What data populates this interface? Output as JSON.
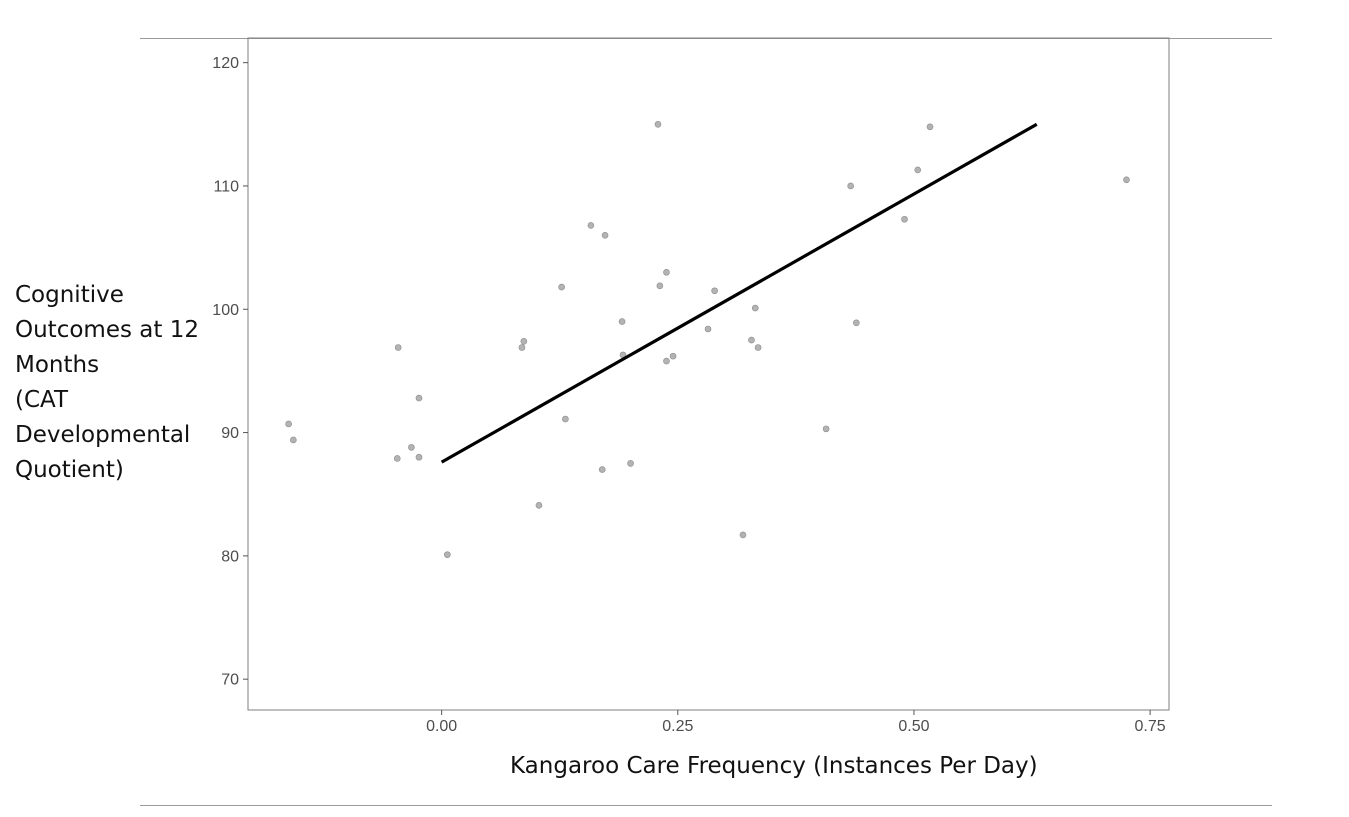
{
  "chart_data": {
    "type": "scatter",
    "title": "",
    "xlabel": "Kangaroo Care Frequency (Instances Per Day)",
    "ylabel_lines": [
      "Cognitive",
      "Outcomes at 12",
      "Months",
      "(CAT",
      "Developmental",
      "Quotient)"
    ],
    "xlim": [
      -0.205,
      0.77
    ],
    "ylim": [
      67.5,
      122
    ],
    "x_ticks": [
      0.0,
      0.25,
      0.5,
      0.75
    ],
    "x_tick_labels": [
      "0.00",
      "0.25",
      "0.50",
      "0.75"
    ],
    "y_ticks": [
      70,
      80,
      90,
      100,
      110,
      120
    ],
    "y_tick_labels": [
      "70",
      "80",
      "90",
      "100",
      "110",
      "120"
    ],
    "grid": false,
    "point_color": "#999999",
    "line_color": "#000000",
    "points": [
      {
        "x": -0.162,
        "y": 90.7
      },
      {
        "x": -0.157,
        "y": 89.4
      },
      {
        "x": -0.046,
        "y": 96.9
      },
      {
        "x": -0.047,
        "y": 87.9
      },
      {
        "x": -0.032,
        "y": 88.8
      },
      {
        "x": -0.024,
        "y": 92.8
      },
      {
        "x": -0.024,
        "y": 88.0
      },
      {
        "x": 0.006,
        "y": 80.1
      },
      {
        "x": 0.085,
        "y": 96.9
      },
      {
        "x": 0.087,
        "y": 97.4
      },
      {
        "x": 0.103,
        "y": 84.1
      },
      {
        "x": 0.127,
        "y": 101.8
      },
      {
        "x": 0.131,
        "y": 91.1
      },
      {
        "x": 0.158,
        "y": 106.8
      },
      {
        "x": 0.17,
        "y": 87.0
      },
      {
        "x": 0.173,
        "y": 106.0
      },
      {
        "x": 0.191,
        "y": 99.0
      },
      {
        "x": 0.192,
        "y": 96.3
      },
      {
        "x": 0.2,
        "y": 87.5
      },
      {
        "x": 0.229,
        "y": 115.0
      },
      {
        "x": 0.231,
        "y": 101.9
      },
      {
        "x": 0.238,
        "y": 103.0
      },
      {
        "x": 0.238,
        "y": 95.8
      },
      {
        "x": 0.245,
        "y": 96.2
      },
      {
        "x": 0.282,
        "y": 98.4
      },
      {
        "x": 0.289,
        "y": 101.5
      },
      {
        "x": 0.319,
        "y": 81.7
      },
      {
        "x": 0.328,
        "y": 97.5
      },
      {
        "x": 0.332,
        "y": 100.1
      },
      {
        "x": 0.335,
        "y": 96.9
      },
      {
        "x": 0.407,
        "y": 90.3
      },
      {
        "x": 0.433,
        "y": 110.0
      },
      {
        "x": 0.439,
        "y": 98.9
      },
      {
        "x": 0.49,
        "y": 107.3
      },
      {
        "x": 0.504,
        "y": 111.3
      },
      {
        "x": 0.517,
        "y": 114.8
      },
      {
        "x": 0.725,
        "y": 110.5
      }
    ],
    "trend_line": {
      "x": [
        0.0,
        0.63
      ],
      "y": [
        87.6,
        115.0
      ]
    }
  }
}
